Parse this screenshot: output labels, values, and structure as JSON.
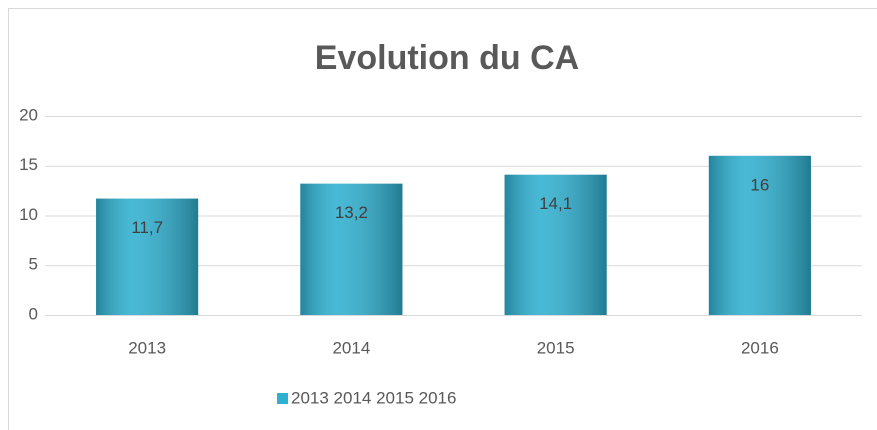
{
  "chart_data": {
    "type": "bar",
    "title": "Evolution du CA",
    "categories": [
      "2013",
      "2014",
      "2015",
      "2016"
    ],
    "series": [
      {
        "name": "2013 2014 2015 2016",
        "color": "#2fb0d0",
        "values": [
          11.7,
          13.2,
          14.1,
          16
        ],
        "value_labels": [
          "11,7",
          "13,2",
          "14,1",
          "16"
        ]
      }
    ],
    "ylim": [
      0,
      20
    ],
    "yticks": [
      0,
      5,
      10,
      15,
      20
    ],
    "grid": true,
    "legend": "bottom"
  }
}
